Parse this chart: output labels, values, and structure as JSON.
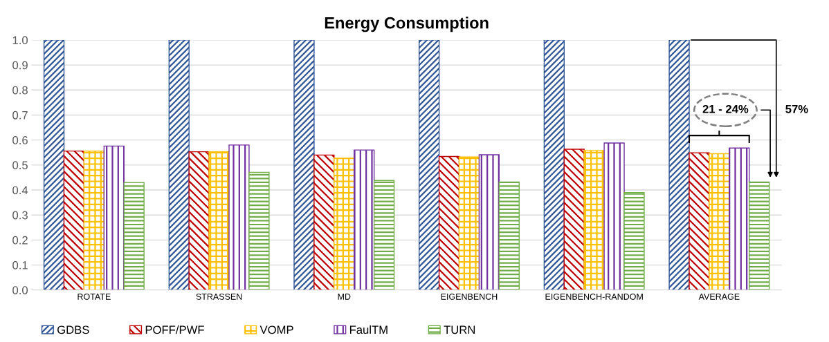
{
  "chart_data": {
    "type": "bar",
    "title": "Energy Consumption",
    "categories": [
      "ROTATE",
      "STRASSEN",
      "MD",
      "EIGENBENCH",
      "EIGENBENCH-RANDOM",
      "AVERAGE"
    ],
    "series": [
      {
        "name": "GDBS",
        "color": "#2f5597",
        "values": [
          1.0,
          1.0,
          1.0,
          1.0,
          1.0,
          1.0
        ]
      },
      {
        "name": "POFF/PWF",
        "color": "#c00000",
        "values": [
          0.556,
          0.553,
          0.54,
          0.534,
          0.563,
          0.549
        ]
      },
      {
        "name": "VOMP",
        "color": "#ffc000",
        "values": [
          0.556,
          0.553,
          0.527,
          0.532,
          0.558,
          0.545
        ]
      },
      {
        "name": "FaulTM",
        "color": "#7030a0",
        "values": [
          0.576,
          0.58,
          0.56,
          0.541,
          0.588,
          0.568
        ]
      },
      {
        "name": "TURN",
        "color": "#70ad47",
        "values": [
          0.43,
          0.471,
          0.438,
          0.432,
          0.39,
          0.432
        ]
      }
    ],
    "ylim": [
      0,
      1.0
    ],
    "yticks": [
      {
        "value": 0,
        "label": "0.0"
      },
      {
        "value": 0.1,
        "label": "0.1"
      },
      {
        "value": 0.2,
        "label": "0.2"
      },
      {
        "value": 0.3,
        "label": "0.3"
      },
      {
        "value": 0.4,
        "label": "0.4"
      },
      {
        "value": 0.5,
        "label": "0.5"
      },
      {
        "value": 0.6,
        "label": "0.6"
      },
      {
        "value": 0.7,
        "label": "0.7"
      },
      {
        "value": 0.8,
        "label": "0.8"
      },
      {
        "value": 0.9,
        "label": "0.9"
      },
      {
        "value": 1.0,
        "label": "1.0"
      }
    ],
    "grid": "y",
    "legend": "bottom left",
    "annotations": [
      "21 - 24%",
      "57%"
    ]
  }
}
